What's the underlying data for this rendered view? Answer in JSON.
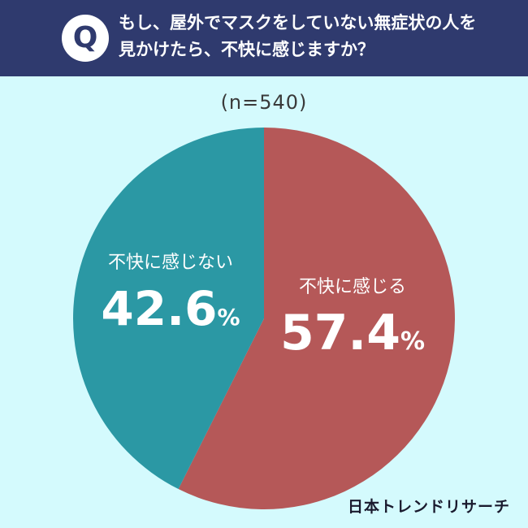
{
  "header": {
    "badge": "Q",
    "question": "もし、屋外でマスクをしていない無症状の人を見かけたら、不快に感じますか？"
  },
  "sample_size": "(n=540)",
  "chart_data": {
    "type": "pie",
    "title": "",
    "slices": [
      {
        "label": "不快に感じる",
        "value": 57.4,
        "display": "57.4",
        "unit": "%",
        "color": "#b55858"
      },
      {
        "label": "不快に感じない",
        "value": 42.6,
        "display": "42.6",
        "unit": "%",
        "color": "#2b98a4"
      }
    ],
    "start_angle": "12 o'clock",
    "direction": "clockwise"
  },
  "footer": {
    "brand": "日本トレンドリサーチ"
  }
}
